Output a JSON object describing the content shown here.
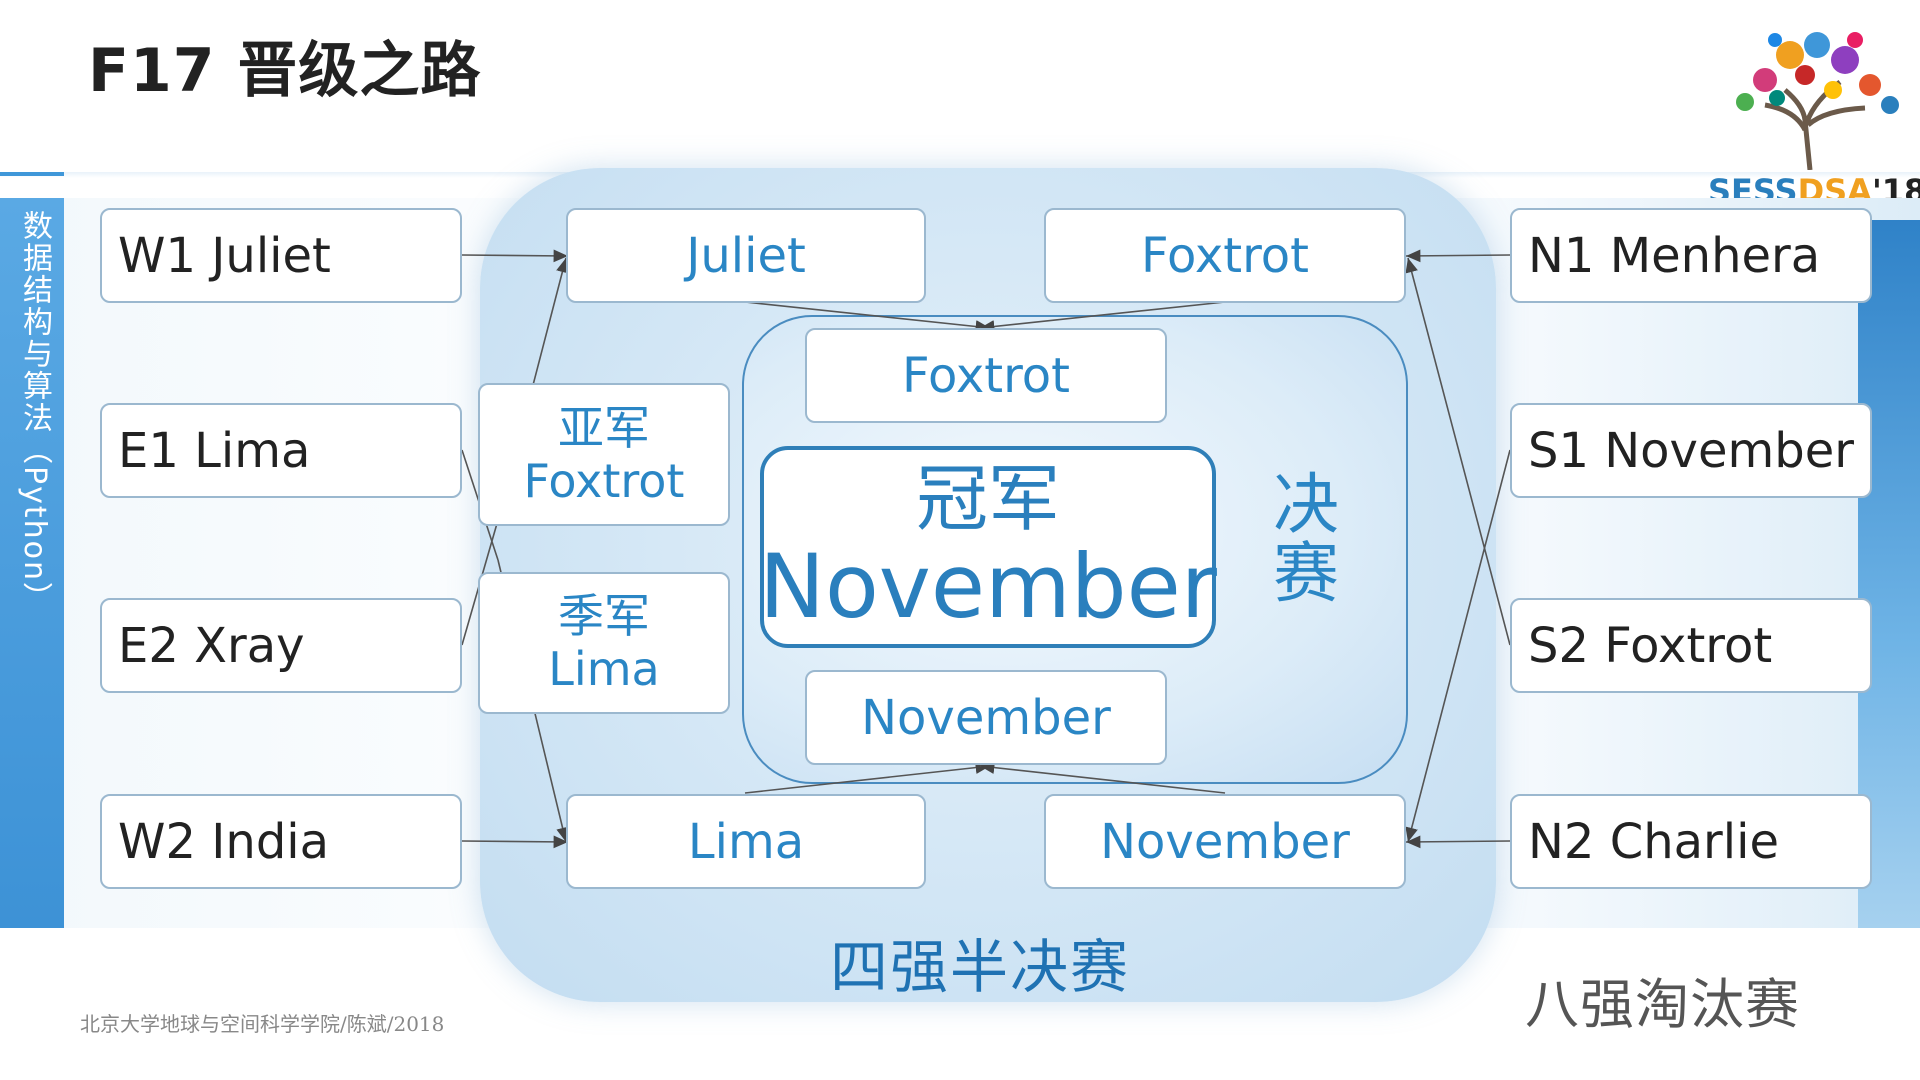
{
  "title": "F17 晋级之路",
  "course_label": "数据结构与算法（Python）",
  "footer": "北京大学地球与空间科学学院/陈斌/2018",
  "logo": {
    "part1": "SESS",
    "part2": "DSA",
    "part3": "'18"
  },
  "quarterfinal": {
    "left": [
      "W1 Juliet",
      "E1 Lima",
      "E2 Xray",
      "W2 India"
    ],
    "right": [
      "N1 Menhera",
      "S1 November",
      "S2 Foxtrot",
      "N2 Charlie"
    ]
  },
  "semifinal": {
    "top_left": "Juliet",
    "top_right": "Foxtrot",
    "bottom_left": "Lima",
    "bottom_right": "November"
  },
  "final": {
    "top": "Foxtrot",
    "bottom": "November"
  },
  "champion": {
    "label": "冠军",
    "name": "November"
  },
  "runner_up": {
    "label": "亚军",
    "name": "Foxtrot"
  },
  "third_place": {
    "label": "季军",
    "name": "Lima"
  },
  "labels": {
    "final": "决赛",
    "semifinal": "四强半决赛",
    "quarterfinal": "八强淘汰赛"
  }
}
